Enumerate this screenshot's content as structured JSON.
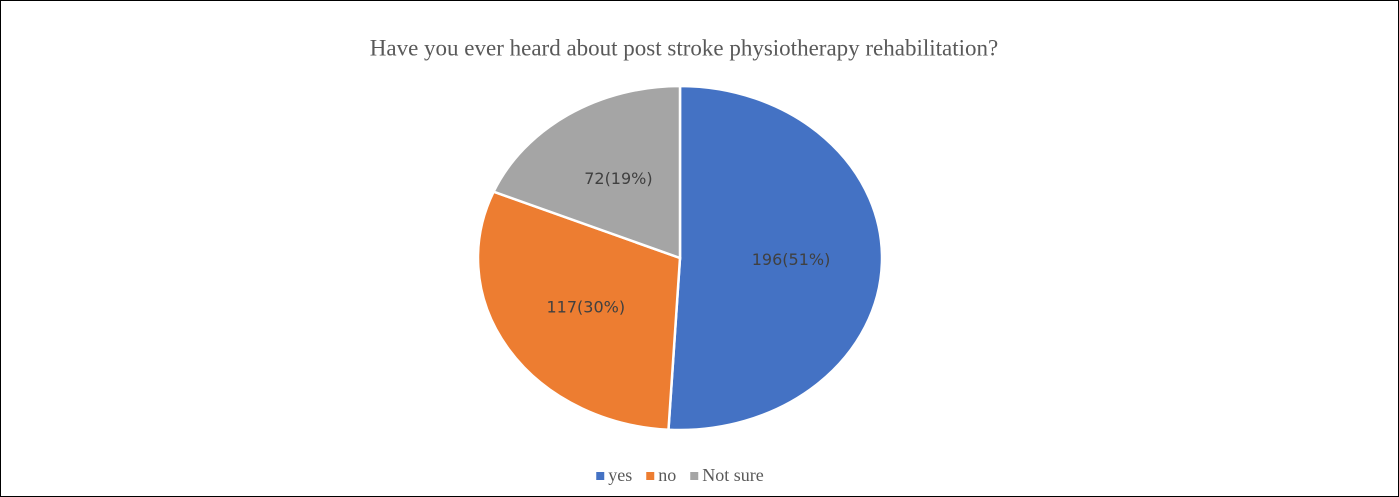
{
  "chart_data": {
    "type": "pie",
    "title": "Have you ever heard about post stroke physiotherapy rehabilitation?",
    "categories": [
      "yes",
      "no",
      "Not sure"
    ],
    "values": [
      196,
      117,
      72
    ],
    "value_labels": [
      "196(51%)",
      "117(30%)",
      "72(19%)"
    ],
    "colors": [
      "#4472c4",
      "#ed7d31",
      "#a5a5a5"
    ],
    "legend": "bottom"
  }
}
